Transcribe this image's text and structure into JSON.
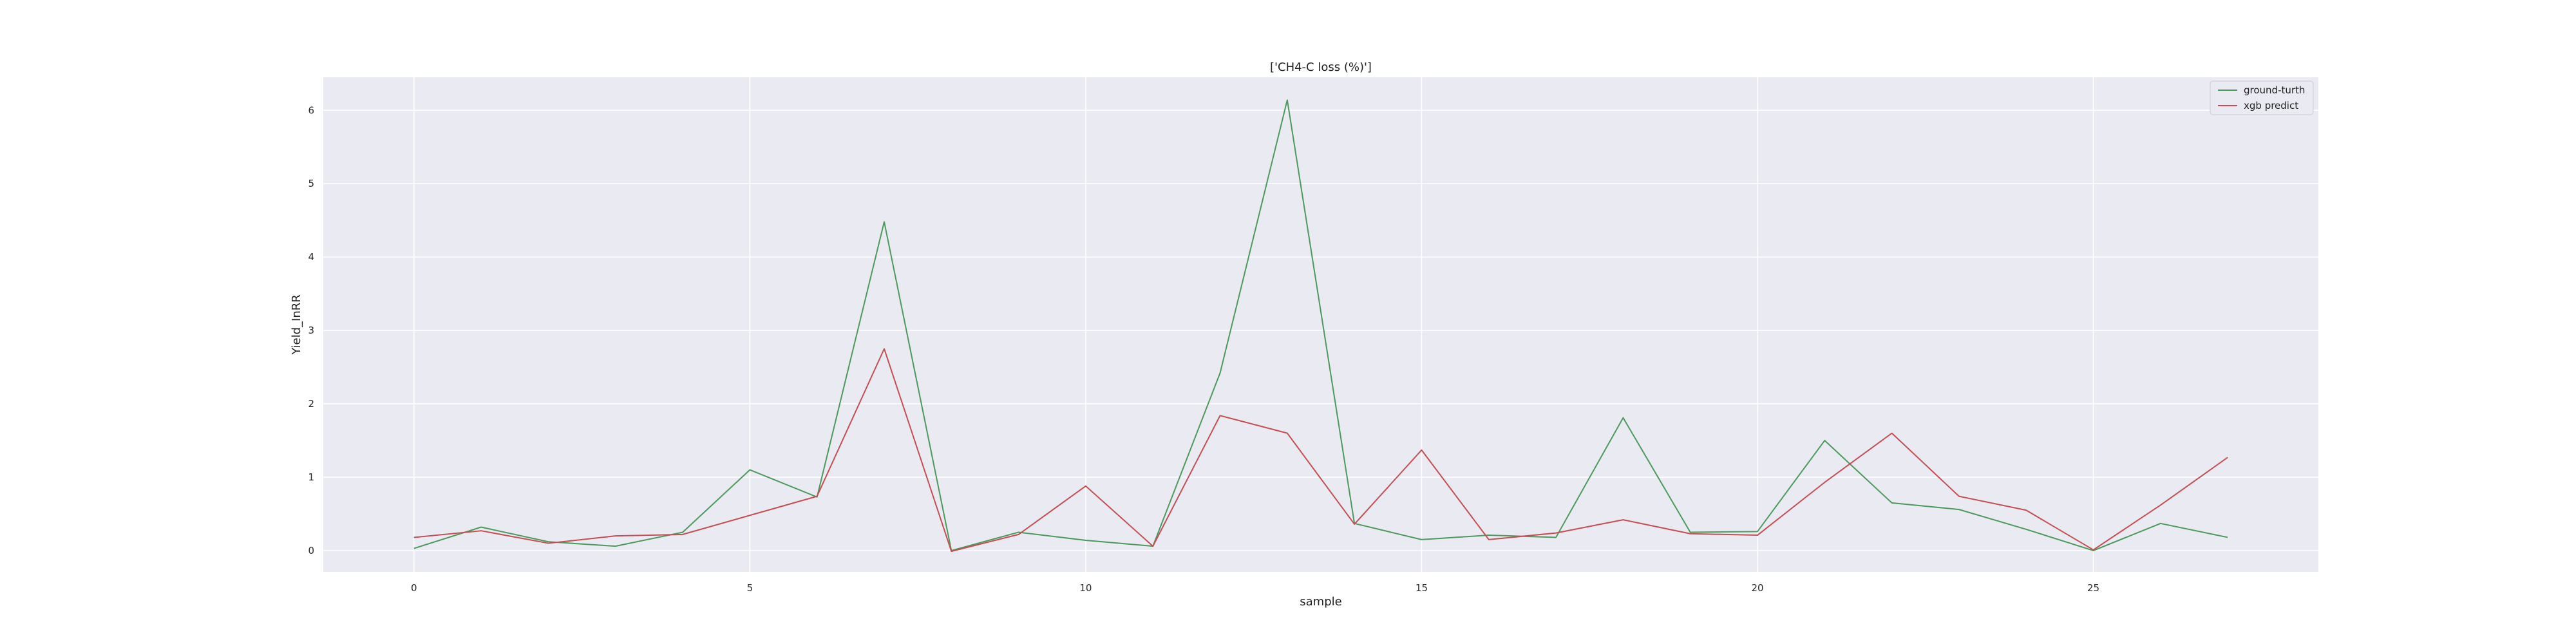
{
  "chart_data": {
    "type": "line",
    "title": "['CH4-C loss (%)']",
    "xlabel": "sample",
    "ylabel": "Yield_InRR",
    "xlim": [
      -1.35,
      28.35
    ],
    "ylim": [
      -0.29,
      6.45
    ],
    "xticks": [
      0,
      5,
      10,
      15,
      20,
      25
    ],
    "yticks": [
      0,
      1,
      2,
      3,
      4,
      5,
      6
    ],
    "grid": true,
    "legend_position": "top-right",
    "x": [
      0,
      1,
      2,
      3,
      4,
      5,
      6,
      7,
      8,
      9,
      10,
      11,
      12,
      13,
      14,
      15,
      16,
      17,
      18,
      19,
      20,
      21,
      22,
      23,
      24,
      25,
      26,
      27
    ],
    "series": [
      {
        "name": "ground-turth",
        "color": "#4c9a5b",
        "values": [
          0.03,
          0.32,
          0.12,
          0.06,
          0.25,
          1.1,
          0.73,
          4.48,
          0.0,
          0.25,
          0.14,
          0.06,
          2.42,
          6.14,
          0.37,
          0.15,
          0.21,
          0.18,
          1.81,
          0.25,
          0.26,
          1.5,
          0.65,
          0.56,
          0.29,
          0.0,
          0.37,
          0.18
        ]
      },
      {
        "name": "xgb predict",
        "color": "#c44e52",
        "values": [
          0.18,
          0.27,
          0.1,
          0.2,
          0.22,
          0.48,
          0.74,
          2.75,
          -0.01,
          0.22,
          0.88,
          0.06,
          1.84,
          1.6,
          0.36,
          1.37,
          0.15,
          0.24,
          0.42,
          0.23,
          0.21,
          0.93,
          1.6,
          0.74,
          0.55,
          0.01,
          0.62,
          1.27
        ]
      }
    ]
  }
}
